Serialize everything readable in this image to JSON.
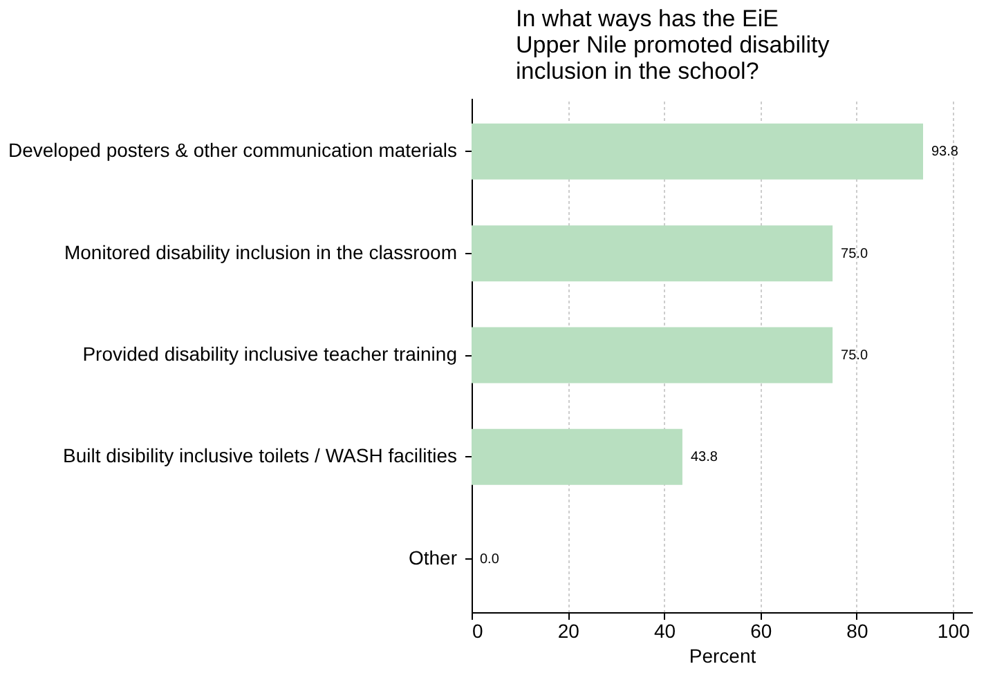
{
  "chart_data": {
    "type": "bar",
    "orientation": "horizontal",
    "title": "In what ways has the EiE\nUpper Nile promoted disability\ninclusion in the school?",
    "categories": [
      "Developed posters & other communication materials",
      "Monitored disability inclusion in the classroom",
      "Provided disability inclusive teacher training",
      "Built disibility inclusive toilets / WASH facilities",
      "Other"
    ],
    "values": [
      93.8,
      75.0,
      75.0,
      43.8,
      0.0
    ],
    "color": "#b8dfc0",
    "xlabel": "Percent",
    "xlim": [
      0,
      104
    ],
    "xticks": [
      0,
      20,
      40,
      60,
      80,
      100
    ],
    "value_labels": [
      "93.8",
      "75.0",
      "75.0",
      "43.8",
      "0.0"
    ],
    "grid": "x"
  }
}
